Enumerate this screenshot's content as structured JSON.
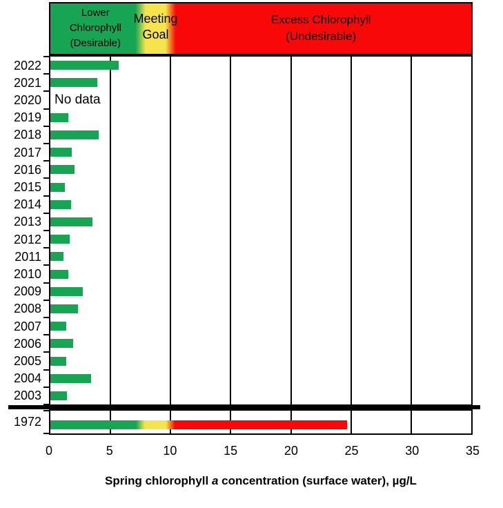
{
  "colors": {
    "green": "#17a453",
    "yellow": "#f5e44c",
    "red": "#f90808",
    "grid": "#000000",
    "text": "#000000",
    "background": "#ffffff"
  },
  "chart_data": {
    "type": "bar",
    "orientation": "horizontal",
    "x_axis_title": {
      "prefix": "Spring chlorophyll ",
      "italic": "a",
      "suffix": " concentration (surface water), µg/L"
    },
    "xlim": [
      0,
      35
    ],
    "x_ticks": [
      "0",
      "5",
      "10",
      "15",
      "20",
      "25",
      "30",
      "35"
    ],
    "gridlines_at": [
      5,
      10,
      15,
      20,
      25,
      30
    ],
    "grid": true,
    "zones": [
      {
        "name": "lower-chlorophyll",
        "label_lines": [
          "Lower",
          "Chlorophyll",
          "(Desirable)"
        ],
        "from": 0,
        "to": 7.5,
        "color": "#17a453"
      },
      {
        "name": "meeting-goal",
        "label_lines": [
          "Meeting",
          "Goal"
        ],
        "from": 7.5,
        "to": 10,
        "color": "#f5e44c"
      },
      {
        "name": "excess-chlorophyll",
        "label_lines": [
          "Excess Chlorophyll",
          "(Undesirable)"
        ],
        "from": 10,
        "to": 35,
        "color": "#f90808"
      }
    ],
    "categories": [
      "2022",
      "2021",
      "2020",
      "2019",
      "2018",
      "2017",
      "2016",
      "2015",
      "2014",
      "2013",
      "2012",
      "2011",
      "2010",
      "2009",
      "2008",
      "2007",
      "2006",
      "2005",
      "2004",
      "2003"
    ],
    "values": [
      5.7,
      3.9,
      null,
      1.5,
      4.0,
      1.8,
      2.0,
      1.2,
      1.7,
      3.5,
      1.6,
      1.1,
      1.5,
      2.7,
      2.3,
      1.3,
      1.9,
      1.3,
      3.4,
      1.4
    ],
    "no_data": {
      "category": "2020",
      "label": "No data"
    },
    "separate_row": {
      "category": "1972",
      "total": 24.7,
      "segments": [
        {
          "zone": "lower-chlorophyll",
          "to": 7.5,
          "color": "#17a453"
        },
        {
          "zone": "meeting-goal",
          "to": 10,
          "color": "#f5e44c"
        },
        {
          "zone": "excess-chlorophyll",
          "to": 24.7,
          "color": "#f90808"
        }
      ]
    }
  }
}
